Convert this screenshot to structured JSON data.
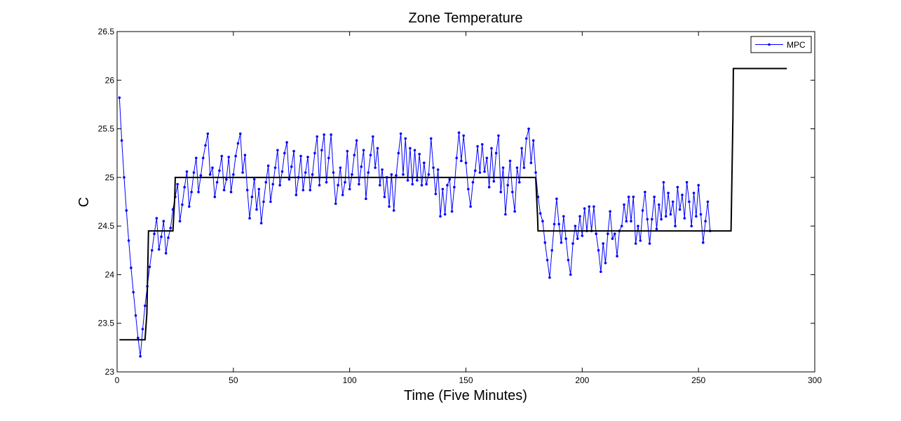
{
  "chart_data": {
    "type": "line",
    "title": "Zone Temperature",
    "xlabel": "Time (Five Minutes)",
    "ylabel": "C",
    "xlim": [
      0,
      300
    ],
    "ylim": [
      23,
      26.5
    ],
    "xticks": [
      0,
      50,
      100,
      150,
      200,
      250,
      300
    ],
    "yticks": [
      23,
      23.5,
      24,
      24.5,
      25,
      25.5,
      26,
      26.5
    ],
    "grid": false,
    "legend_position": "top-right",
    "colors": {
      "mpc": "#0000ff",
      "setpoint": "#000000",
      "axes": "#000000"
    },
    "series": [
      {
        "name": "MPC",
        "style": "line-with-point-markers",
        "x_start": 1,
        "x_step": 1,
        "values": [
          25.82,
          25.38,
          25.0,
          24.66,
          24.35,
          24.07,
          23.82,
          23.58,
          23.35,
          23.16,
          23.44,
          23.68,
          23.88,
          24.08,
          24.25,
          24.42,
          24.58,
          24.26,
          24.39,
          24.55,
          24.22,
          24.38,
          24.48,
          24.67,
          24.8,
          24.93,
          24.55,
          24.72,
          24.9,
          25.06,
          24.7,
          24.85,
          25.05,
          25.2,
          24.85,
          25.02,
          25.2,
          25.33,
          25.45,
          25.03,
          25.1,
          24.8,
          24.95,
          25.07,
          25.22,
          24.87,
          24.98,
          25.21,
          24.85,
          25.03,
          25.22,
          25.35,
          25.45,
          25.05,
          25.23,
          24.87,
          24.58,
          24.8,
          24.98,
          24.67,
          24.88,
          24.53,
          24.75,
          24.95,
          25.12,
          24.75,
          24.93,
          25.1,
          25.28,
          24.92,
          25.06,
          25.25,
          25.36,
          24.98,
          25.11,
          25.27,
          24.82,
          25.0,
          25.22,
          24.87,
          25.05,
          25.21,
          24.87,
          25.03,
          25.25,
          25.42,
          24.92,
          25.28,
          25.44,
          24.95,
          25.2,
          25.44,
          25.05,
          24.73,
          24.92,
          25.1,
          24.82,
          24.95,
          25.27,
          24.88,
          25.03,
          25.23,
          25.38,
          24.93,
          25.11,
          25.28,
          24.78,
          25.05,
          25.23,
          25.42,
          25.1,
          25.3,
          24.92,
          25.08,
          24.8,
          25.0,
          24.7,
          25.03,
          24.66,
          25.02,
          25.25,
          25.45,
          25.03,
          25.4,
          24.97,
          25.3,
          24.93,
          25.28,
          24.97,
          25.24,
          24.92,
          25.15,
          24.93,
          25.03,
          25.4,
          25.1,
          24.83,
          25.08,
          24.6,
          24.88,
          24.62,
          24.92,
          24.98,
          24.65,
          24.9,
          25.2,
          25.46,
          25.17,
          25.43,
          25.15,
          24.88,
          24.7,
          24.95,
          25.07,
          25.32,
          25.05,
          25.34,
          25.06,
          25.2,
          24.9,
          25.3,
          24.96,
          25.25,
          25.43,
          24.85,
          25.1,
          24.62,
          24.92,
          25.17,
          24.85,
          24.65,
          25.1,
          24.95,
          25.3,
          25.1,
          25.4,
          25.5,
          25.15,
          25.38,
          25.05,
          24.8,
          24.63,
          24.55,
          24.33,
          24.15,
          23.97,
          24.25,
          24.52,
          24.78,
          24.52,
          24.33,
          24.6,
          24.37,
          24.15,
          24.0,
          24.32,
          24.5,
          24.37,
          24.6,
          24.4,
          24.68,
          24.45,
          24.7,
          24.45,
          24.7,
          24.42,
          24.25,
          24.03,
          24.32,
          24.12,
          24.42,
          24.65,
          24.37,
          24.42,
          24.19,
          24.45,
          24.5,
          24.72,
          24.55,
          24.8,
          24.55,
          24.8,
          24.32,
          24.5,
          24.35,
          24.66,
          24.85,
          24.57,
          24.32,
          24.57,
          24.8,
          24.47,
          24.72,
          24.57,
          24.95,
          24.6,
          24.84,
          24.62,
          24.75,
          24.5,
          24.9,
          24.67,
          24.82,
          24.58,
          24.95,
          24.75,
          24.5,
          24.84,
          24.6,
          24.92,
          24.62,
          24.33,
          24.55,
          24.75,
          24.45
        ]
      },
      {
        "name": "",
        "style": "step",
        "x": [
          1,
          12,
          12.8,
          13.5,
          24,
          24.8,
          25,
          180,
          180.8,
          181,
          264,
          264.8,
          265,
          288
        ],
        "values": [
          23.33,
          23.33,
          23.6,
          24.45,
          24.45,
          24.8,
          25.0,
          25.0,
          24.6,
          24.45,
          24.45,
          25.6,
          26.12,
          26.12
        ]
      }
    ]
  }
}
